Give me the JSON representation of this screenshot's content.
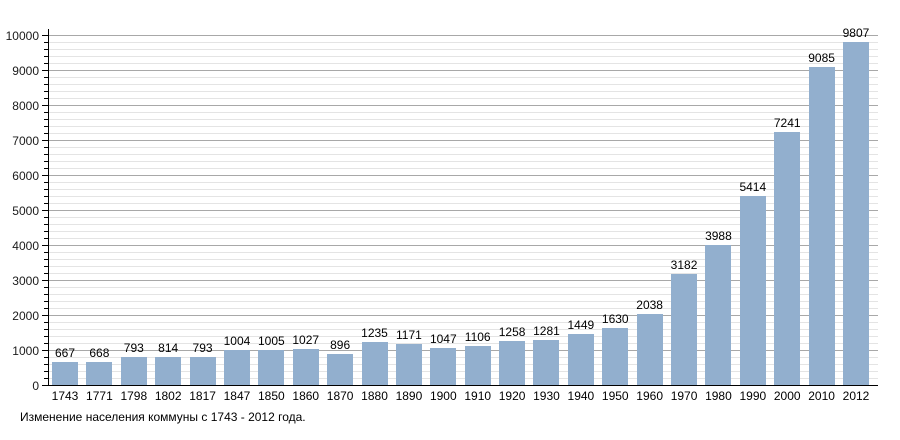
{
  "caption": "Изменение населения коммуны с 1743 - 2012 года.",
  "colors": {
    "bar_fill": "#92afce",
    "major_gridline": "#a8a8a8",
    "minor_gridline": "#e4e4e4",
    "axis": "#000000",
    "background": "#ffffff"
  },
  "chart_data": {
    "type": "bar",
    "title": "",
    "xlabel": "",
    "ylabel": "",
    "categories": [
      "1743",
      "1771",
      "1798",
      "1802",
      "1817",
      "1847",
      "1850",
      "1860",
      "1870",
      "1880",
      "1890",
      "1900",
      "1910",
      "1920",
      "1930",
      "1940",
      "1950",
      "1960",
      "1970",
      "1980",
      "1990",
      "2000",
      "2010",
      "2012"
    ],
    "values": [
      667,
      668,
      793,
      814,
      793,
      1004,
      1005,
      1027,
      896,
      1235,
      1171,
      1047,
      1106,
      1258,
      1281,
      1449,
      1630,
      2038,
      3182,
      3988,
      5414,
      7241,
      9085,
      9807
    ],
    "ylim": [
      0,
      10000
    ],
    "y_major_step": 1000,
    "y_minor_step": 200,
    "y_tick_labels": [
      "0",
      "1000",
      "2000",
      "3000",
      "4000",
      "5000",
      "6000",
      "7000",
      "8000",
      "9000",
      "10000"
    ],
    "grid": "on",
    "legend": "none",
    "bar_labels_shown": true,
    "caption": "Изменение населения коммуны с 1743 - 2012 года."
  }
}
